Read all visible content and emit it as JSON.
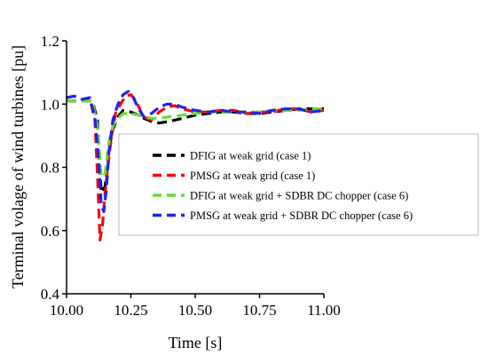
{
  "chart_data": {
    "type": "line",
    "title": "",
    "xlabel": "Time [s]",
    "ylabel": "Terminal volage of wind turbines [pu]",
    "xlim": [
      10.0,
      11.0
    ],
    "ylim": [
      0.4,
      1.2
    ],
    "xticks": [
      10.0,
      10.25,
      10.5,
      10.75,
      11.0
    ],
    "xtick_labels": [
      "10.00",
      "10.25",
      "10.50",
      "10.75",
      "11.00"
    ],
    "yticks": [
      0.4,
      0.6,
      0.8,
      1.0,
      1.2
    ],
    "ytick_labels": [
      "0.4",
      "0.6",
      "0.8",
      "1.0",
      "1.2"
    ],
    "grid": false,
    "legend_position": "center-right",
    "series": [
      {
        "name": "DFIG at weak grid (case 1)",
        "color": "#000000",
        "x": [
          10.0,
          10.05,
          10.1,
          10.12,
          10.135,
          10.15,
          10.165,
          10.18,
          10.2,
          10.22,
          10.25,
          10.28,
          10.3,
          10.33,
          10.36,
          10.4,
          10.45,
          10.5,
          10.55,
          10.6,
          10.65,
          10.7,
          10.75,
          10.8,
          10.85,
          10.9,
          10.95,
          11.0
        ],
        "y": [
          1.01,
          1.01,
          1.01,
          0.95,
          0.72,
          0.74,
          0.86,
          0.92,
          0.96,
          0.98,
          0.975,
          0.965,
          0.955,
          0.945,
          0.94,
          0.945,
          0.955,
          0.965,
          0.97,
          0.975,
          0.975,
          0.97,
          0.97,
          0.975,
          0.98,
          0.985,
          0.985,
          0.985
        ]
      },
      {
        "name": "PMSG at weak grid (case 1)",
        "color": "#ff0000",
        "x": [
          10.0,
          10.03,
          10.06,
          10.09,
          10.11,
          10.12,
          10.13,
          10.14,
          10.15,
          10.16,
          10.175,
          10.19,
          10.21,
          10.23,
          10.25,
          10.27,
          10.29,
          10.31,
          10.33,
          10.36,
          10.39,
          10.42,
          10.45,
          10.5,
          10.55,
          10.6,
          10.65,
          10.7,
          10.75,
          10.8,
          10.85,
          10.9,
          10.95,
          11.0
        ],
        "y": [
          1.02,
          1.025,
          1.015,
          1.02,
          0.95,
          0.78,
          0.57,
          0.62,
          0.72,
          0.8,
          0.9,
          0.97,
          1.0,
          1.025,
          1.03,
          1.01,
          0.975,
          0.955,
          0.95,
          0.975,
          0.99,
          0.995,
          0.985,
          0.975,
          0.975,
          0.98,
          0.98,
          0.97,
          0.975,
          0.975,
          0.985,
          0.985,
          0.975,
          0.98
        ]
      },
      {
        "name": "DFIG at weak grid + SDBR DC chopper (case 6)",
        "color": "#66dd33",
        "x": [
          10.0,
          10.05,
          10.1,
          10.12,
          10.135,
          10.15,
          10.165,
          10.18,
          10.2,
          10.22,
          10.25,
          10.28,
          10.3,
          10.33,
          10.36,
          10.4,
          10.45,
          10.5,
          10.55,
          10.6,
          10.65,
          10.7,
          10.75,
          10.8,
          10.85,
          10.9,
          10.95,
          11.0
        ],
        "y": [
          1.01,
          1.01,
          1.01,
          0.93,
          0.77,
          0.78,
          0.88,
          0.93,
          0.955,
          0.97,
          0.97,
          0.965,
          0.96,
          0.955,
          0.955,
          0.96,
          0.965,
          0.97,
          0.975,
          0.975,
          0.975,
          0.975,
          0.975,
          0.98,
          0.98,
          0.98,
          0.985,
          0.985
        ]
      },
      {
        "name": "PMSG at weak grid + SDBR DC chopper (case 6)",
        "color": "#2222ee",
        "x": [
          10.0,
          10.03,
          10.06,
          10.09,
          10.11,
          10.125,
          10.135,
          10.145,
          10.155,
          10.165,
          10.18,
          10.2,
          10.22,
          10.24,
          10.26,
          10.28,
          10.3,
          10.33,
          10.36,
          10.39,
          10.42,
          10.45,
          10.5,
          10.55,
          10.6,
          10.65,
          10.7,
          10.75,
          10.8,
          10.85,
          10.9,
          10.95,
          11.0
        ],
        "y": [
          1.02,
          1.025,
          1.015,
          1.02,
          0.96,
          0.82,
          0.68,
          0.66,
          0.73,
          0.85,
          0.95,
          1.0,
          1.03,
          1.04,
          1.02,
          0.985,
          0.96,
          0.97,
          0.99,
          1.0,
          1.0,
          0.99,
          0.98,
          0.975,
          0.98,
          0.975,
          0.975,
          0.97,
          0.98,
          0.985,
          0.985,
          0.975,
          0.98
        ]
      }
    ]
  }
}
